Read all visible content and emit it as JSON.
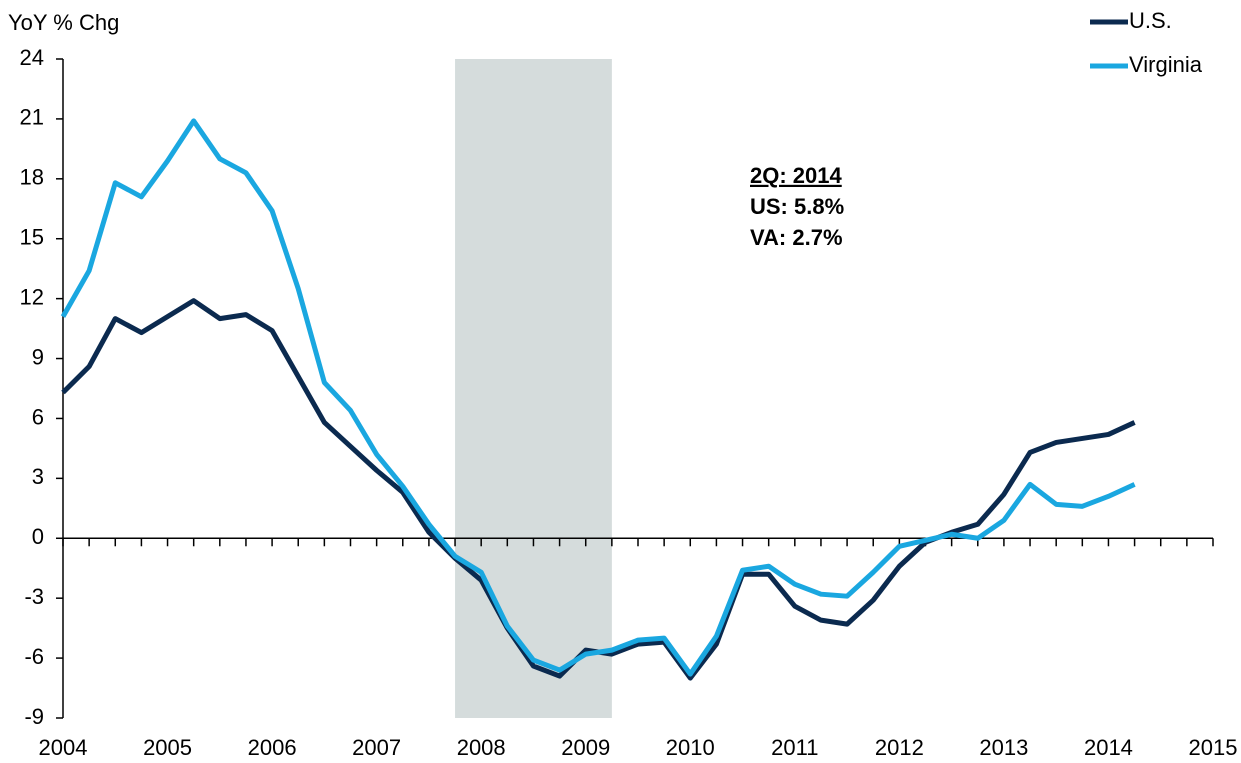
{
  "chart_data": {
    "type": "line",
    "y_label": "YoY % Chg",
    "xlim": [
      2004,
      2015
    ],
    "xticks": [
      2004,
      2005,
      2006,
      2007,
      2008,
      2009,
      2010,
      2011,
      2012,
      2013,
      2014,
      2015
    ],
    "ylim": [
      -9,
      24
    ],
    "yticks": [
      -9,
      -6,
      -3,
      0,
      3,
      6,
      9,
      12,
      15,
      18,
      21,
      24
    ],
    "recession": [
      2007.75,
      2009.25
    ],
    "recession_color": "#d5dcdc",
    "legend": "top-right",
    "annotations": [
      "2Q: 2014",
      "US: 5.8%",
      "VA: 2.7%"
    ],
    "x": [
      2004,
      2004.25,
      2004.5,
      2004.75,
      2005,
      2005.25,
      2005.5,
      2005.75,
      2006,
      2006.25,
      2006.5,
      2006.75,
      2007,
      2007.25,
      2007.5,
      2007.75,
      2008,
      2008.25,
      2008.5,
      2008.75,
      2009,
      2009.25,
      2009.5,
      2009.75,
      2010,
      2010.25,
      2010.5,
      2010.75,
      2011,
      2011.25,
      2011.5,
      2011.75,
      2012,
      2012.25,
      2012.5,
      2012.75,
      2013,
      2013.25,
      2013.5,
      2013.75,
      2014,
      2014.25
    ],
    "series": [
      {
        "name": "U.S.",
        "color": "#0b2a4f",
        "values": [
          7.3,
          8.6,
          11.0,
          10.3,
          11.1,
          11.9,
          11.0,
          11.2,
          10.4,
          8.1,
          5.8,
          4.6,
          3.4,
          2.3,
          0.3,
          -1.0,
          -2.1,
          -4.5,
          -6.4,
          -6.9,
          -5.6,
          -5.8,
          -5.3,
          -5.2,
          -7.0,
          -5.3,
          -1.8,
          -1.8,
          -3.4,
          -4.1,
          -4.3,
          -3.1,
          -1.4,
          -0.2,
          0.3,
          0.7,
          2.2,
          4.3,
          4.8,
          5.0,
          5.2,
          5.8
        ]
      },
      {
        "name": "Virginia",
        "color": "#1aa7e0",
        "values": [
          11.1,
          13.4,
          17.8,
          17.1,
          18.9,
          20.9,
          19.0,
          18.3,
          16.4,
          12.5,
          7.8,
          6.4,
          4.2,
          2.6,
          0.7,
          -0.9,
          -1.7,
          -4.4,
          -6.1,
          -6.6,
          -5.8,
          -5.6,
          -5.1,
          -5.0,
          -6.8,
          -4.9,
          -1.6,
          -1.4,
          -2.3,
          -2.8,
          -2.9,
          -1.7,
          -0.4,
          -0.1,
          0.2,
          0.0,
          0.9,
          2.7,
          1.7,
          1.6,
          2.1,
          2.7
        ]
      }
    ]
  }
}
